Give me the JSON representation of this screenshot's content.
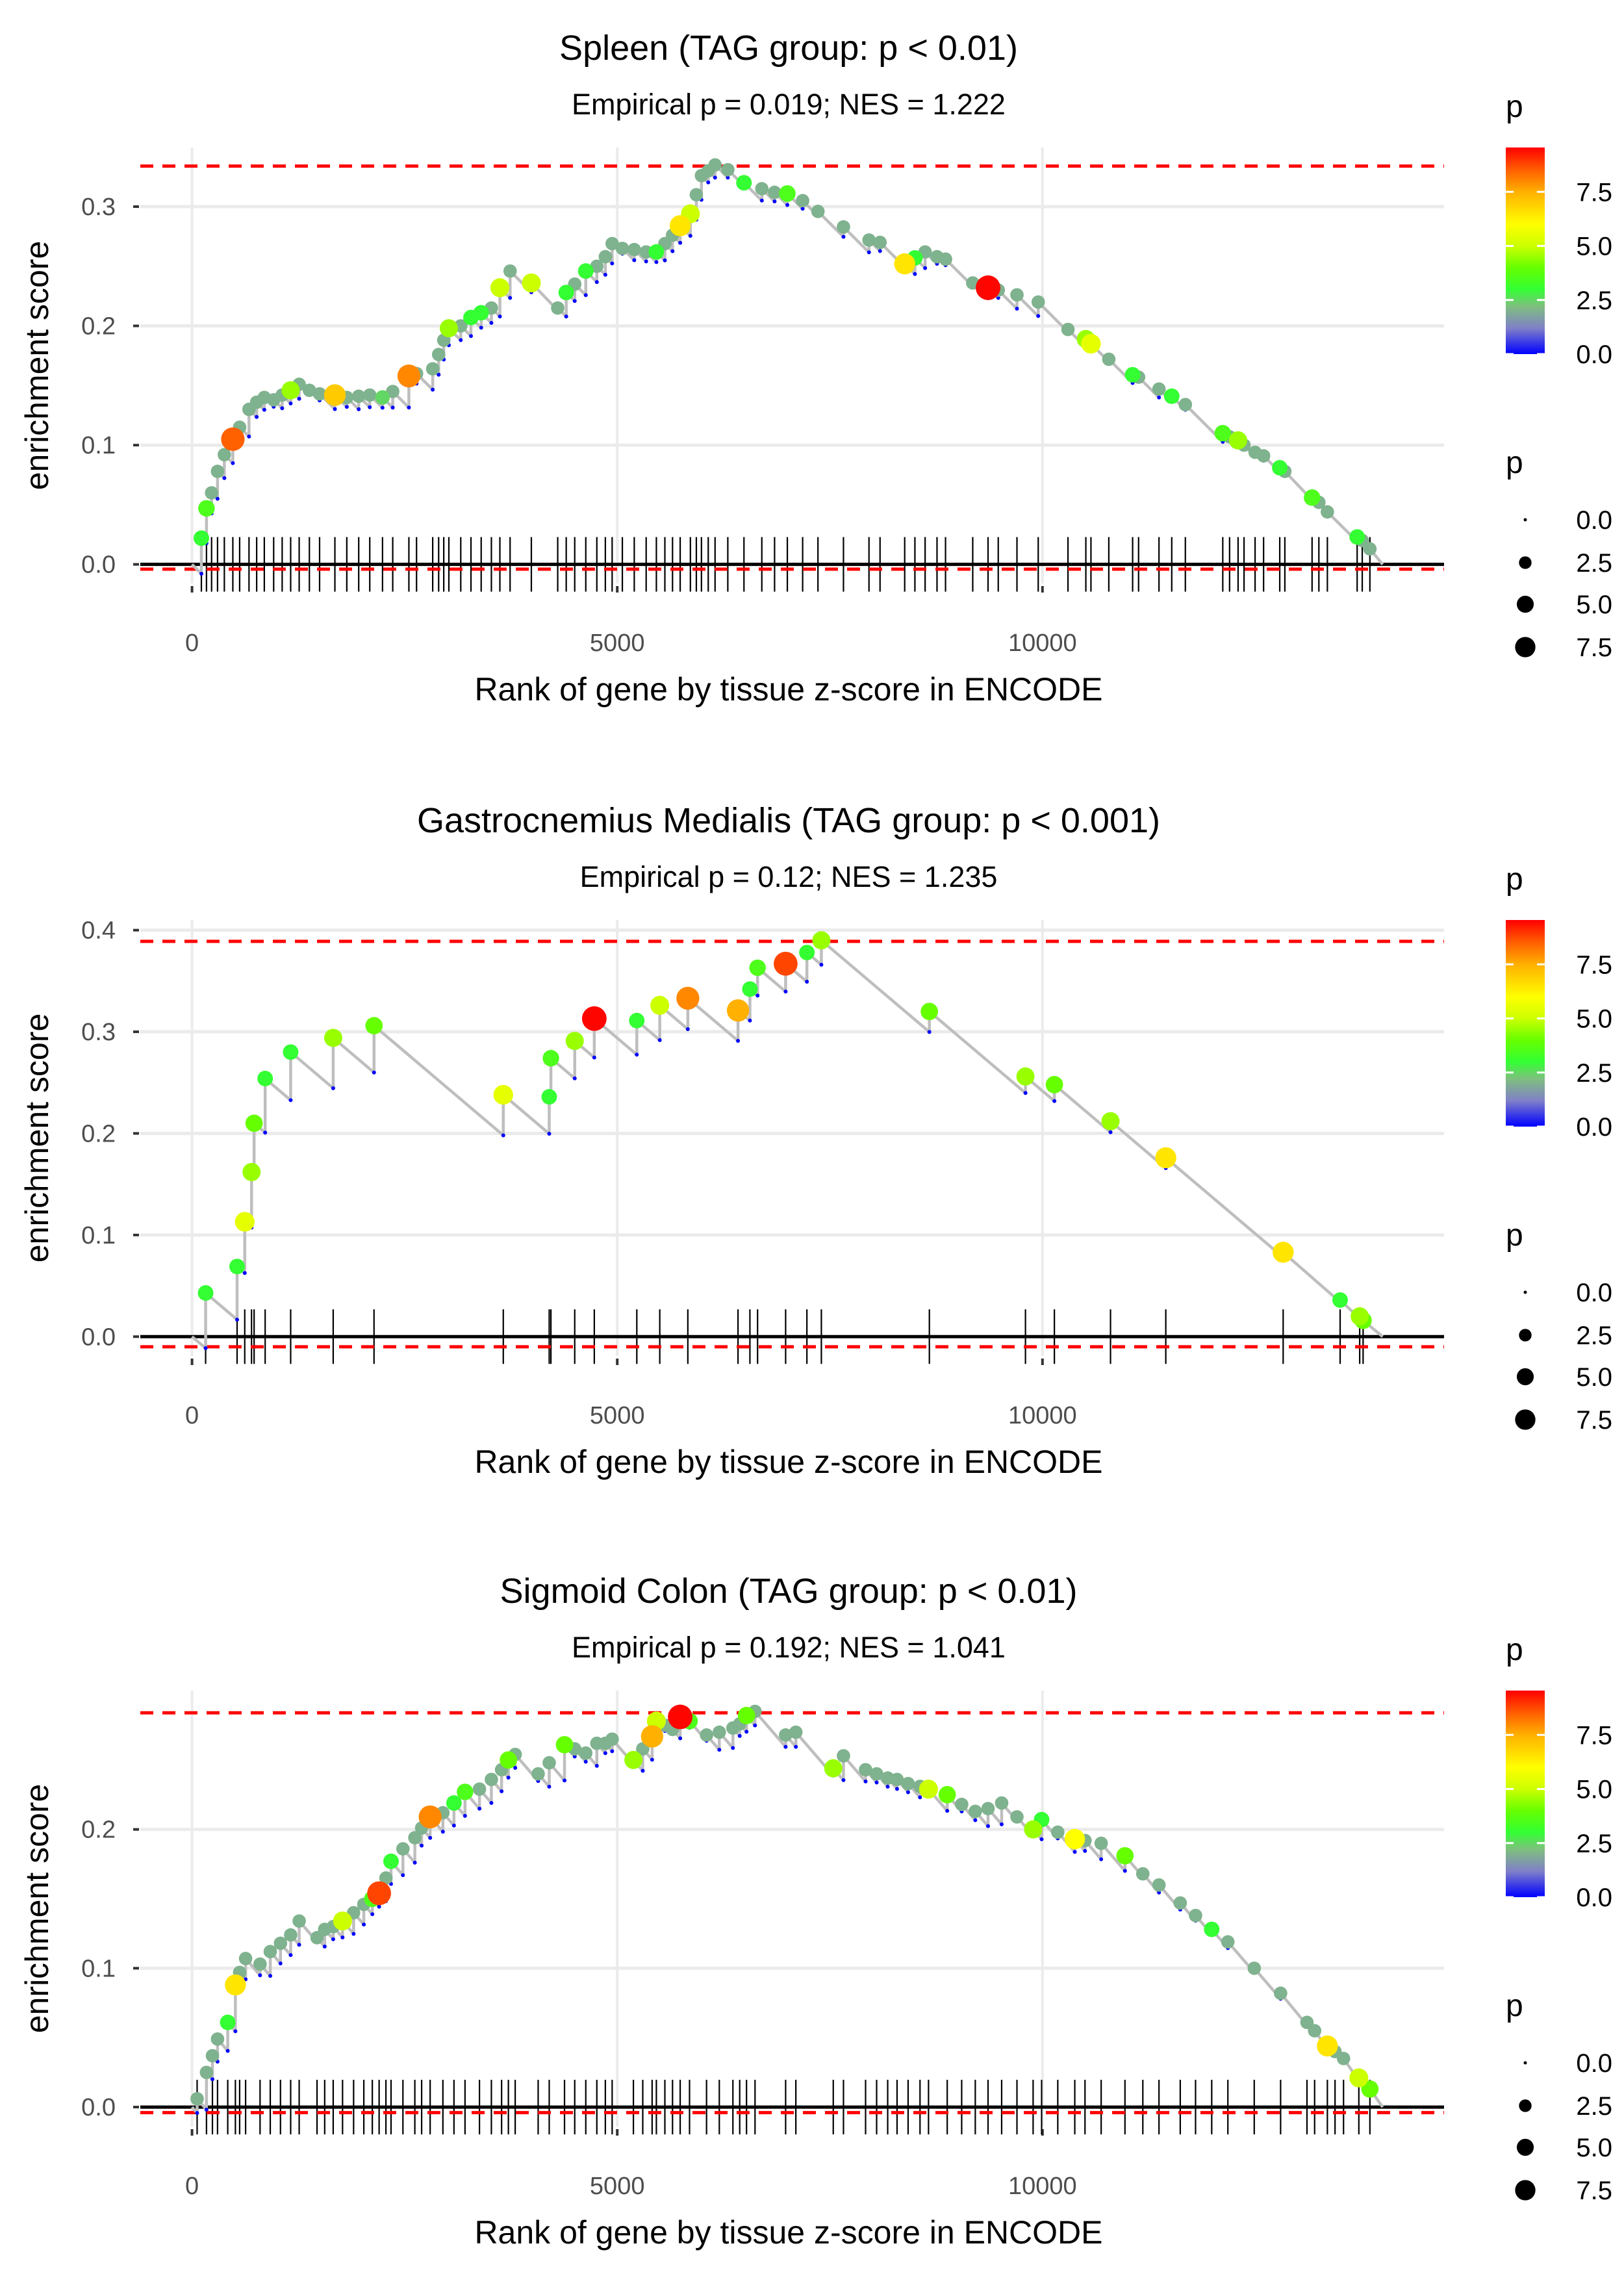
{
  "legend": {
    "color_title": "p",
    "size_title": "p",
    "color_ticks": [
      {
        "value": 0.0,
        "label": "0.0"
      },
      {
        "value": 2.5,
        "label": "2.5"
      },
      {
        "value": 5.0,
        "label": "5.0"
      },
      {
        "value": 7.5,
        "label": "7.5"
      }
    ],
    "color_range": [
      0,
      9.55
    ],
    "size_items": [
      {
        "value": 0.0,
        "label": "0.0"
      },
      {
        "value": 2.5,
        "label": "2.5"
      },
      {
        "value": 5.0,
        "label": "5.0"
      },
      {
        "value": 7.5,
        "label": "7.5"
      }
    ],
    "color_stops": [
      {
        "value": 0.0,
        "color": "#0000ff"
      },
      {
        "value": 1.2,
        "color": "#8080c8"
      },
      {
        "value": 2.2,
        "color": "#7fbf7f"
      },
      {
        "value": 3.0,
        "color": "#33ff33"
      },
      {
        "value": 4.0,
        "color": "#66ff00"
      },
      {
        "value": 5.0,
        "color": "#ccff00"
      },
      {
        "value": 6.0,
        "color": "#ffff00"
      },
      {
        "value": 7.5,
        "color": "#ffb000"
      },
      {
        "value": 8.5,
        "color": "#ff6000"
      },
      {
        "value": 9.55,
        "color": "#ff0000"
      }
    ]
  },
  "colors": {
    "line": "#bebebe",
    "zero_line": "#000000",
    "threshold": "#ff0000",
    "rug": "#000000",
    "grid": "#ebebeb"
  },
  "chart_data": [
    {
      "type": "line",
      "title": "Spleen (TAG group: p < 0.01)",
      "subtitle": "Empirical p = 0.019; NES = 1.222",
      "xlabel": "Rank of gene by tissue z-score in ENCODE",
      "ylabel": "enrichment score",
      "xlim": [
        -608,
        14722
      ],
      "ylim": [
        -0.016,
        0.3496
      ],
      "x_ticks": [
        {
          "value": 0,
          "label": "0"
        },
        {
          "value": 5000,
          "label": "5000"
        },
        {
          "value": 10000,
          "label": "10000"
        }
      ],
      "y_ticks": [
        {
          "value": 0.0,
          "label": "0.0"
        },
        {
          "value": 0.1,
          "label": "0.1"
        },
        {
          "value": 0.2,
          "label": "0.2"
        },
        {
          "value": 0.3,
          "label": "0.3"
        }
      ],
      "thresholds": [
        0.334,
        -0.004
      ],
      "n_genes": 14000,
      "decrement_per_gene": 7.1e-05,
      "hits_columns": [
        "rank",
        "es",
        "p"
      ],
      "hits": [
        [
          110,
          0.022,
          3
        ],
        [
          170,
          0.047,
          3.5
        ],
        [
          230,
          0.06,
          2
        ],
        [
          300,
          0.078,
          2
        ],
        [
          380,
          0.092,
          2
        ],
        [
          480,
          0.105,
          8.5
        ],
        [
          560,
          0.115,
          2
        ],
        [
          670,
          0.13,
          2
        ],
        [
          760,
          0.136,
          2
        ],
        [
          850,
          0.14,
          2
        ],
        [
          960,
          0.138,
          2
        ],
        [
          1060,
          0.142,
          2
        ],
        [
          1160,
          0.146,
          4.5
        ],
        [
          1260,
          0.151,
          2
        ],
        [
          1380,
          0.146,
          2
        ],
        [
          1500,
          0.143,
          2
        ],
        [
          1680,
          0.142,
          7
        ],
        [
          1820,
          0.14,
          2
        ],
        [
          1960,
          0.141,
          2
        ],
        [
          2090,
          0.142,
          2
        ],
        [
          2240,
          0.14,
          2.5
        ],
        [
          2360,
          0.145,
          2
        ],
        [
          2550,
          0.158,
          8
        ],
        [
          2640,
          0.16,
          2
        ],
        [
          2830,
          0.164,
          2
        ],
        [
          2900,
          0.176,
          2
        ],
        [
          2960,
          0.188,
          2
        ],
        [
          3020,
          0.198,
          4.5
        ],
        [
          3160,
          0.2,
          2
        ],
        [
          3280,
          0.207,
          3
        ],
        [
          3400,
          0.211,
          3
        ],
        [
          3520,
          0.215,
          2
        ],
        [
          3620,
          0.232,
          5
        ],
        [
          3740,
          0.246,
          2
        ],
        [
          3990,
          0.236,
          5
        ],
        [
          4300,
          0.215,
          2
        ],
        [
          4400,
          0.228,
          3
        ],
        [
          4500,
          0.235,
          2
        ],
        [
          4630,
          0.246,
          3
        ],
        [
          4760,
          0.25,
          2
        ],
        [
          4860,
          0.258,
          2
        ],
        [
          4940,
          0.269,
          2
        ],
        [
          5060,
          0.265,
          2
        ],
        [
          5200,
          0.264,
          2
        ],
        [
          5340,
          0.262,
          2
        ],
        [
          5460,
          0.262,
          3
        ],
        [
          5560,
          0.269,
          2
        ],
        [
          5650,
          0.276,
          2
        ],
        [
          5740,
          0.284,
          6.5
        ],
        [
          5860,
          0.294,
          5
        ],
        [
          5930,
          0.31,
          2
        ],
        [
          5990,
          0.326,
          2
        ],
        [
          6070,
          0.33,
          2
        ],
        [
          6150,
          0.335,
          2
        ],
        [
          6300,
          0.331,
          2
        ],
        [
          6490,
          0.32,
          3
        ],
        [
          6700,
          0.315,
          2
        ],
        [
          6850,
          0.312,
          2
        ],
        [
          7000,
          0.311,
          3.5
        ],
        [
          7180,
          0.305,
          2
        ],
        [
          7360,
          0.296,
          2
        ],
        [
          7660,
          0.283,
          2
        ],
        [
          7960,
          0.272,
          2
        ],
        [
          8090,
          0.27,
          2
        ],
        [
          8380,
          0.252,
          6.5
        ],
        [
          8500,
          0.257,
          3
        ],
        [
          8620,
          0.262,
          2
        ],
        [
          8760,
          0.258,
          2
        ],
        [
          8860,
          0.256,
          2
        ],
        [
          9180,
          0.236,
          2
        ],
        [
          9360,
          0.232,
          9.5
        ],
        [
          9480,
          0.23,
          2
        ],
        [
          9700,
          0.226,
          2
        ],
        [
          9950,
          0.22,
          2
        ],
        [
          10300,
          0.197,
          2
        ],
        [
          10510,
          0.189,
          4.5
        ],
        [
          10570,
          0.185,
          5.5
        ],
        [
          10780,
          0.172,
          2
        ],
        [
          11060,
          0.159,
          3
        ],
        [
          11130,
          0.157,
          2
        ],
        [
          11370,
          0.147,
          2
        ],
        [
          11520,
          0.141,
          3
        ],
        [
          11680,
          0.134,
          2
        ],
        [
          12120,
          0.11,
          3.5
        ],
        [
          12200,
          0.107,
          2
        ],
        [
          12300,
          0.104,
          4.5
        ],
        [
          12370,
          0.1,
          2
        ],
        [
          12500,
          0.094,
          2
        ],
        [
          12600,
          0.091,
          2
        ],
        [
          12790,
          0.081,
          3
        ],
        [
          12850,
          0.078,
          2
        ],
        [
          13170,
          0.056,
          3.5
        ],
        [
          13250,
          0.052,
          2
        ],
        [
          13350,
          0.044,
          2
        ],
        [
          13700,
          0.023,
          3
        ],
        [
          13760,
          0.02,
          2
        ],
        [
          13850,
          0.013,
          2
        ]
      ]
    },
    {
      "type": "line",
      "title": "Gastrocnemius Medialis (TAG group: p < 0.001)",
      "subtitle": "Empirical p = 0.12; NES = 1.235",
      "xlabel": "Rank of gene by tissue z-score in ENCODE",
      "ylabel": "enrichment score",
      "xlim": [
        -608,
        14722
      ],
      "ylim": [
        -0.019,
        0.41
      ],
      "x_ticks": [
        {
          "value": 0,
          "label": "0"
        },
        {
          "value": 5000,
          "label": "5000"
        },
        {
          "value": 10000,
          "label": "10000"
        }
      ],
      "y_ticks": [
        {
          "value": 0.0,
          "label": "0.0"
        },
        {
          "value": 0.1,
          "label": "0.1"
        },
        {
          "value": 0.2,
          "label": "0.2"
        },
        {
          "value": 0.3,
          "label": "0.3"
        },
        {
          "value": 0.4,
          "label": "0.4"
        }
      ],
      "thresholds": [
        0.389,
        -0.01
      ],
      "n_genes": 14000,
      "decrement_per_gene": 7.1e-05,
      "hits_columns": [
        "rank",
        "es",
        "p"
      ],
      "hits": [
        [
          160,
          0.043,
          3
        ],
        [
          530,
          0.069,
          3
        ],
        [
          620,
          0.113,
          5.5
        ],
        [
          700,
          0.162,
          4.5
        ],
        [
          730,
          0.21,
          4
        ],
        [
          860,
          0.254,
          3
        ],
        [
          1160,
          0.28,
          3
        ],
        [
          1660,
          0.294,
          4.5
        ],
        [
          2140,
          0.306,
          4
        ],
        [
          3660,
          0.238,
          5.5
        ],
        [
          4200,
          0.236,
          3
        ],
        [
          4220,
          0.274,
          3.5
        ],
        [
          4500,
          0.291,
          4.5
        ],
        [
          4730,
          0.313,
          9.5
        ],
        [
          5230,
          0.311,
          3
        ],
        [
          5500,
          0.326,
          5
        ],
        [
          5830,
          0.333,
          8
        ],
        [
          6420,
          0.321,
          7.5
        ],
        [
          6560,
          0.342,
          3
        ],
        [
          6650,
          0.363,
          3.5
        ],
        [
          6980,
          0.367,
          8.8
        ],
        [
          7230,
          0.378,
          3
        ],
        [
          7400,
          0.39,
          4.5
        ],
        [
          8670,
          0.32,
          4
        ],
        [
          9800,
          0.256,
          4.5
        ],
        [
          10140,
          0.248,
          4
        ],
        [
          10800,
          0.212,
          4.5
        ],
        [
          11450,
          0.176,
          6.5
        ],
        [
          12830,
          0.083,
          6.5
        ],
        [
          13500,
          0.036,
          3
        ],
        [
          13730,
          0.02,
          4.5
        ],
        [
          13770,
          0.016,
          4
        ]
      ]
    },
    {
      "type": "line",
      "title": "Sigmoid Colon (TAG group: p < 0.01)",
      "subtitle": "Empirical p = 0.192; NES = 1.041",
      "xlabel": "Rank of gene by tissue z-score in ENCODE",
      "ylabel": "enrichment score",
      "xlim": [
        -608,
        14722
      ],
      "ylim": [
        -0.014,
        0.3
      ],
      "x_ticks": [
        {
          "value": 0,
          "label": "0"
        },
        {
          "value": 5000,
          "label": "5000"
        },
        {
          "value": 10000,
          "label": "10000"
        }
      ],
      "y_ticks": [
        {
          "value": 0.0,
          "label": "0.0"
        },
        {
          "value": 0.1,
          "label": "0.1"
        },
        {
          "value": 0.2,
          "label": "0.2"
        }
      ],
      "thresholds": [
        0.284,
        -0.004
      ],
      "n_genes": 14000,
      "decrement_per_gene": 7.1e-05,
      "hits_columns": [
        "rank",
        "es",
        "p"
      ],
      "hits": [
        [
          60,
          0.006,
          2
        ],
        [
          170,
          0.025,
          2
        ],
        [
          240,
          0.037,
          2
        ],
        [
          300,
          0.049,
          2
        ],
        [
          420,
          0.061,
          3
        ],
        [
          510,
          0.088,
          6.5
        ],
        [
          560,
          0.097,
          2
        ],
        [
          630,
          0.107,
          2
        ],
        [
          800,
          0.103,
          2
        ],
        [
          920,
          0.112,
          2
        ],
        [
          1040,
          0.118,
          2
        ],
        [
          1160,
          0.124,
          2
        ],
        [
          1260,
          0.134,
          2
        ],
        [
          1470,
          0.122,
          2
        ],
        [
          1560,
          0.128,
          2
        ],
        [
          1660,
          0.13,
          2
        ],
        [
          1770,
          0.134,
          5
        ],
        [
          1900,
          0.14,
          2
        ],
        [
          2020,
          0.146,
          2
        ],
        [
          2120,
          0.15,
          3.5
        ],
        [
          2200,
          0.154,
          8.8
        ],
        [
          2280,
          0.165,
          2
        ],
        [
          2340,
          0.177,
          3
        ],
        [
          2480,
          0.186,
          2
        ],
        [
          2620,
          0.194,
          2
        ],
        [
          2700,
          0.201,
          2
        ],
        [
          2800,
          0.209,
          8
        ],
        [
          2950,
          0.212,
          2
        ],
        [
          3080,
          0.219,
          3
        ],
        [
          3210,
          0.227,
          3.5
        ],
        [
          3380,
          0.229,
          2
        ],
        [
          3520,
          0.236,
          2
        ],
        [
          3640,
          0.243,
          2
        ],
        [
          3720,
          0.25,
          4
        ],
        [
          3800,
          0.254,
          2
        ],
        [
          4070,
          0.24,
          2
        ],
        [
          4200,
          0.248,
          2
        ],
        [
          4380,
          0.261,
          4
        ],
        [
          4500,
          0.258,
          2
        ],
        [
          4630,
          0.255,
          2
        ],
        [
          4760,
          0.262,
          2
        ],
        [
          4860,
          0.262,
          2
        ],
        [
          4940,
          0.265,
          2
        ],
        [
          5190,
          0.25,
          4.5
        ],
        [
          5300,
          0.258,
          2
        ],
        [
          5410,
          0.267,
          7.5
        ],
        [
          5460,
          0.278,
          5
        ],
        [
          5560,
          0.275,
          2
        ],
        [
          5650,
          0.272,
          2
        ],
        [
          5740,
          0.281,
          9.5
        ],
        [
          5850,
          0.278,
          3.5
        ],
        [
          6050,
          0.268,
          2
        ],
        [
          6200,
          0.27,
          2
        ],
        [
          6360,
          0.273,
          2
        ],
        [
          6440,
          0.276,
          2
        ],
        [
          6520,
          0.282,
          4
        ],
        [
          6620,
          0.285,
          2
        ],
        [
          6980,
          0.268,
          2
        ],
        [
          7100,
          0.27,
          2
        ],
        [
          7540,
          0.244,
          4.5
        ],
        [
          7660,
          0.253,
          2
        ],
        [
          7920,
          0.243,
          2
        ],
        [
          8050,
          0.24,
          2
        ],
        [
          8180,
          0.237,
          2
        ],
        [
          8290,
          0.236,
          2
        ],
        [
          8420,
          0.233,
          2
        ],
        [
          8560,
          0.231,
          2
        ],
        [
          8660,
          0.229,
          5
        ],
        [
          8880,
          0.225,
          4
        ],
        [
          9050,
          0.218,
          2
        ],
        [
          9210,
          0.213,
          2
        ],
        [
          9360,
          0.215,
          2
        ],
        [
          9520,
          0.219,
          2
        ],
        [
          9700,
          0.209,
          2
        ],
        [
          9890,
          0.2,
          4.5
        ],
        [
          9990,
          0.207,
          3
        ],
        [
          10180,
          0.198,
          2
        ],
        [
          10380,
          0.193,
          6
        ],
        [
          10500,
          0.192,
          2
        ],
        [
          10690,
          0.19,
          2
        ],
        [
          10970,
          0.181,
          4
        ],
        [
          11180,
          0.168,
          2
        ],
        [
          11370,
          0.16,
          2
        ],
        [
          11620,
          0.147,
          2
        ],
        [
          11800,
          0.138,
          2
        ],
        [
          11990,
          0.128,
          3
        ],
        [
          12180,
          0.119,
          2
        ],
        [
          12490,
          0.1,
          2
        ],
        [
          12800,
          0.082,
          2
        ],
        [
          13110,
          0.061,
          2
        ],
        [
          13200,
          0.055,
          2
        ],
        [
          13350,
          0.044,
          6.5
        ],
        [
          13440,
          0.04,
          2
        ],
        [
          13540,
          0.035,
          2
        ],
        [
          13720,
          0.021,
          5
        ],
        [
          13850,
          0.013,
          4
        ]
      ]
    }
  ]
}
